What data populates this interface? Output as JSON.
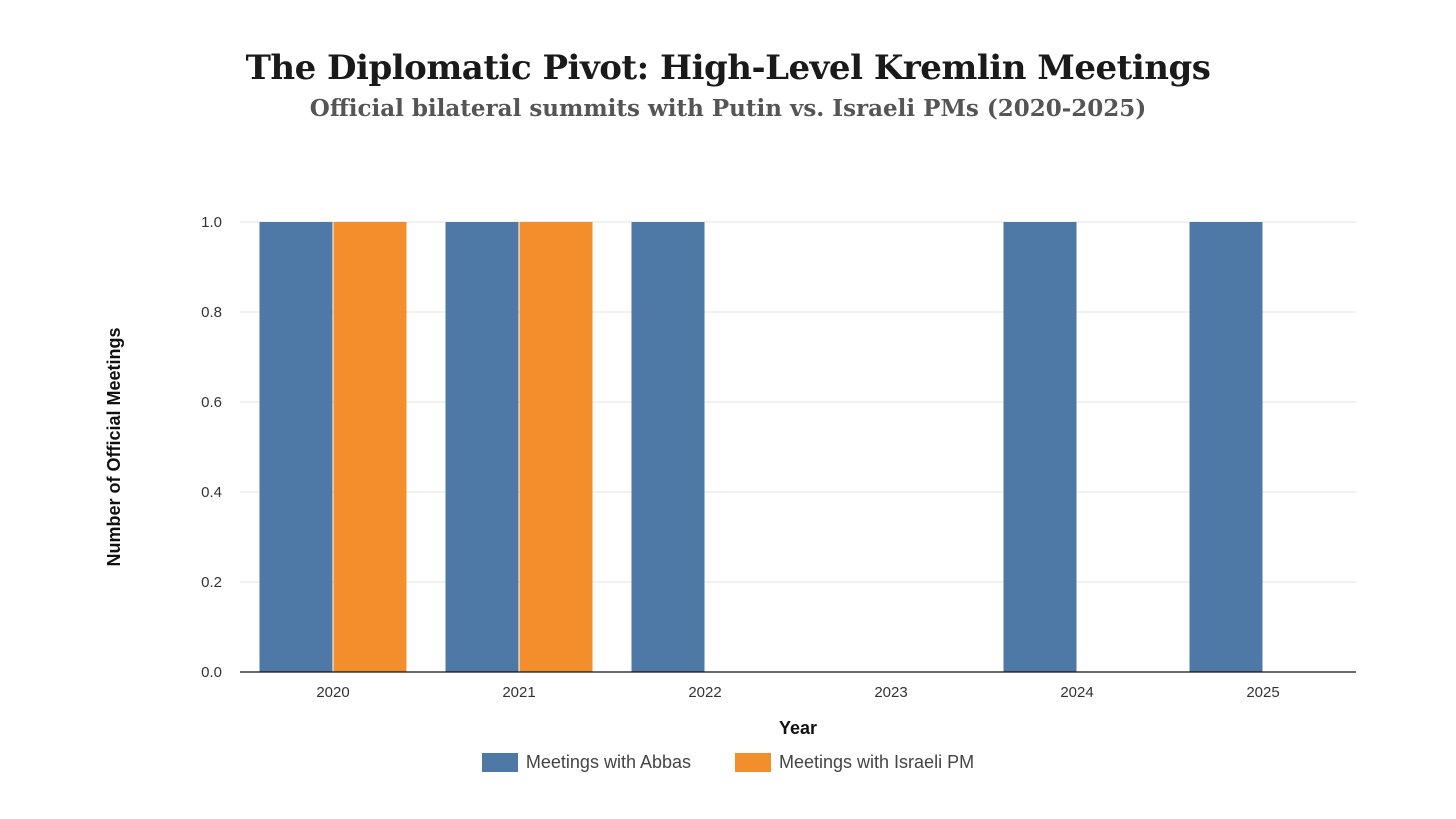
{
  "chart_data": {
    "type": "bar",
    "title": "The Diplomatic Pivot: High-Level Kremlin Meetings",
    "subtitle": "Official bilateral summits with Putin vs. Israeli PMs (2020-2025)",
    "xlabel": "Year",
    "ylabel": "Number of Official Meetings",
    "categories": [
      "2020",
      "2021",
      "2022",
      "2023",
      "2024",
      "2025"
    ],
    "ylim": [
      0,
      1.0
    ],
    "yticks": [
      "0.0",
      "0.2",
      "0.4",
      "0.6",
      "0.8",
      "1.0"
    ],
    "grid": true,
    "legend_position": "bottom-center",
    "series": [
      {
        "name": "Meetings with Abbas",
        "color": "#4e79a7",
        "values": [
          1,
          1,
          1,
          0,
          1,
          1
        ]
      },
      {
        "name": "Meetings with Israeli PM",
        "color": "#f28e2b",
        "values": [
          1,
          1,
          0,
          0,
          0,
          0
        ]
      }
    ]
  }
}
